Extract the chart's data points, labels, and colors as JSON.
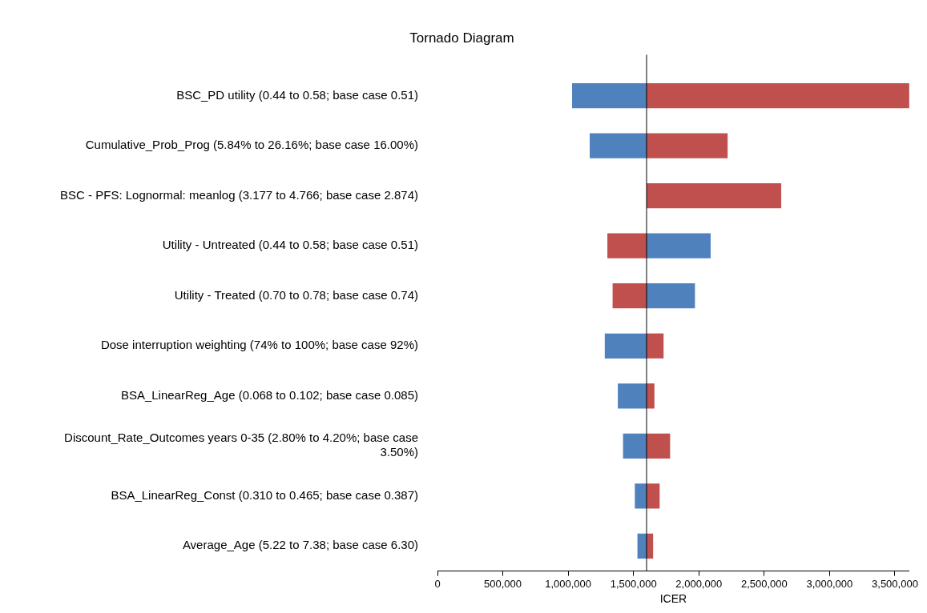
{
  "chart_data": {
    "type": "bar",
    "orientation": "horizontal",
    "title": "Tornado Diagram",
    "xlabel": "ICER",
    "categories": [
      "BSC_PD utility (0.44 to 0.58; base case 0.51)",
      "Cumulative_Prob_Prog (5.84% to 26.16%; base case 16.00%)",
      "BSC - PFS: Lognormal: meanlog (3.177 to 4.766; base case 2.874)",
      "Utility - Untreated (0.44 to 0.58; base case 0.51)",
      "Utility - Treated (0.70 to 0.78; base case 0.74)",
      "Dose interruption weighting (74% to 100%; base case 92%)",
      "BSA_LinearReg_Age (0.068 to 0.102; base case 0.085)",
      "Discount_Rate_Outcomes years 0-35 (2.80% to 4.20%; base case 3.50%)",
      "BSA_LinearReg_Const (0.310 to 0.465; base case 0.387)",
      "Average_Age (5.22 to 7.38; base case 6.30)"
    ],
    "series": [
      {
        "color": "#4f81bd",
        "base": [
          1030000,
          1165000,
          null,
          1600000,
          1600000,
          1280000,
          1380000,
          1420000,
          1510000,
          1530000
        ],
        "values": [
          570000,
          435000,
          null,
          490000,
          370000,
          320000,
          220000,
          180000,
          90000,
          70000
        ]
      },
      {
        "color": "#c0504d",
        "base": [
          1600000,
          1600000,
          1600000,
          1300000,
          1340000,
          1600000,
          1600000,
          1600000,
          1600000,
          1600000
        ],
        "values": [
          2010000,
          620000,
          1030000,
          300000,
          260000,
          130000,
          60000,
          180000,
          100000,
          50000
        ]
      }
    ],
    "xlim": [
      0,
      3610000
    ],
    "xticks": [
      0,
      {
        "value": 500000,
        "label": "500,000"
      },
      {
        "value": 1000000,
        "label": "1,000,000"
      },
      {
        "value": 1500000,
        "label": "1,500,000"
      },
      {
        "value": 2000000,
        "label": "2,000,000"
      },
      {
        "value": 2500000,
        "label": "2,500,000"
      },
      {
        "value": 3000000,
        "label": "3,000,000"
      },
      {
        "value": 3500000,
        "label": "3,500,000"
      }
    ],
    "ref_lines": [
      {
        "axis": "x",
        "value": 1600000,
        "color": "#000000"
      }
    ],
    "grid": false,
    "legend": false
  }
}
